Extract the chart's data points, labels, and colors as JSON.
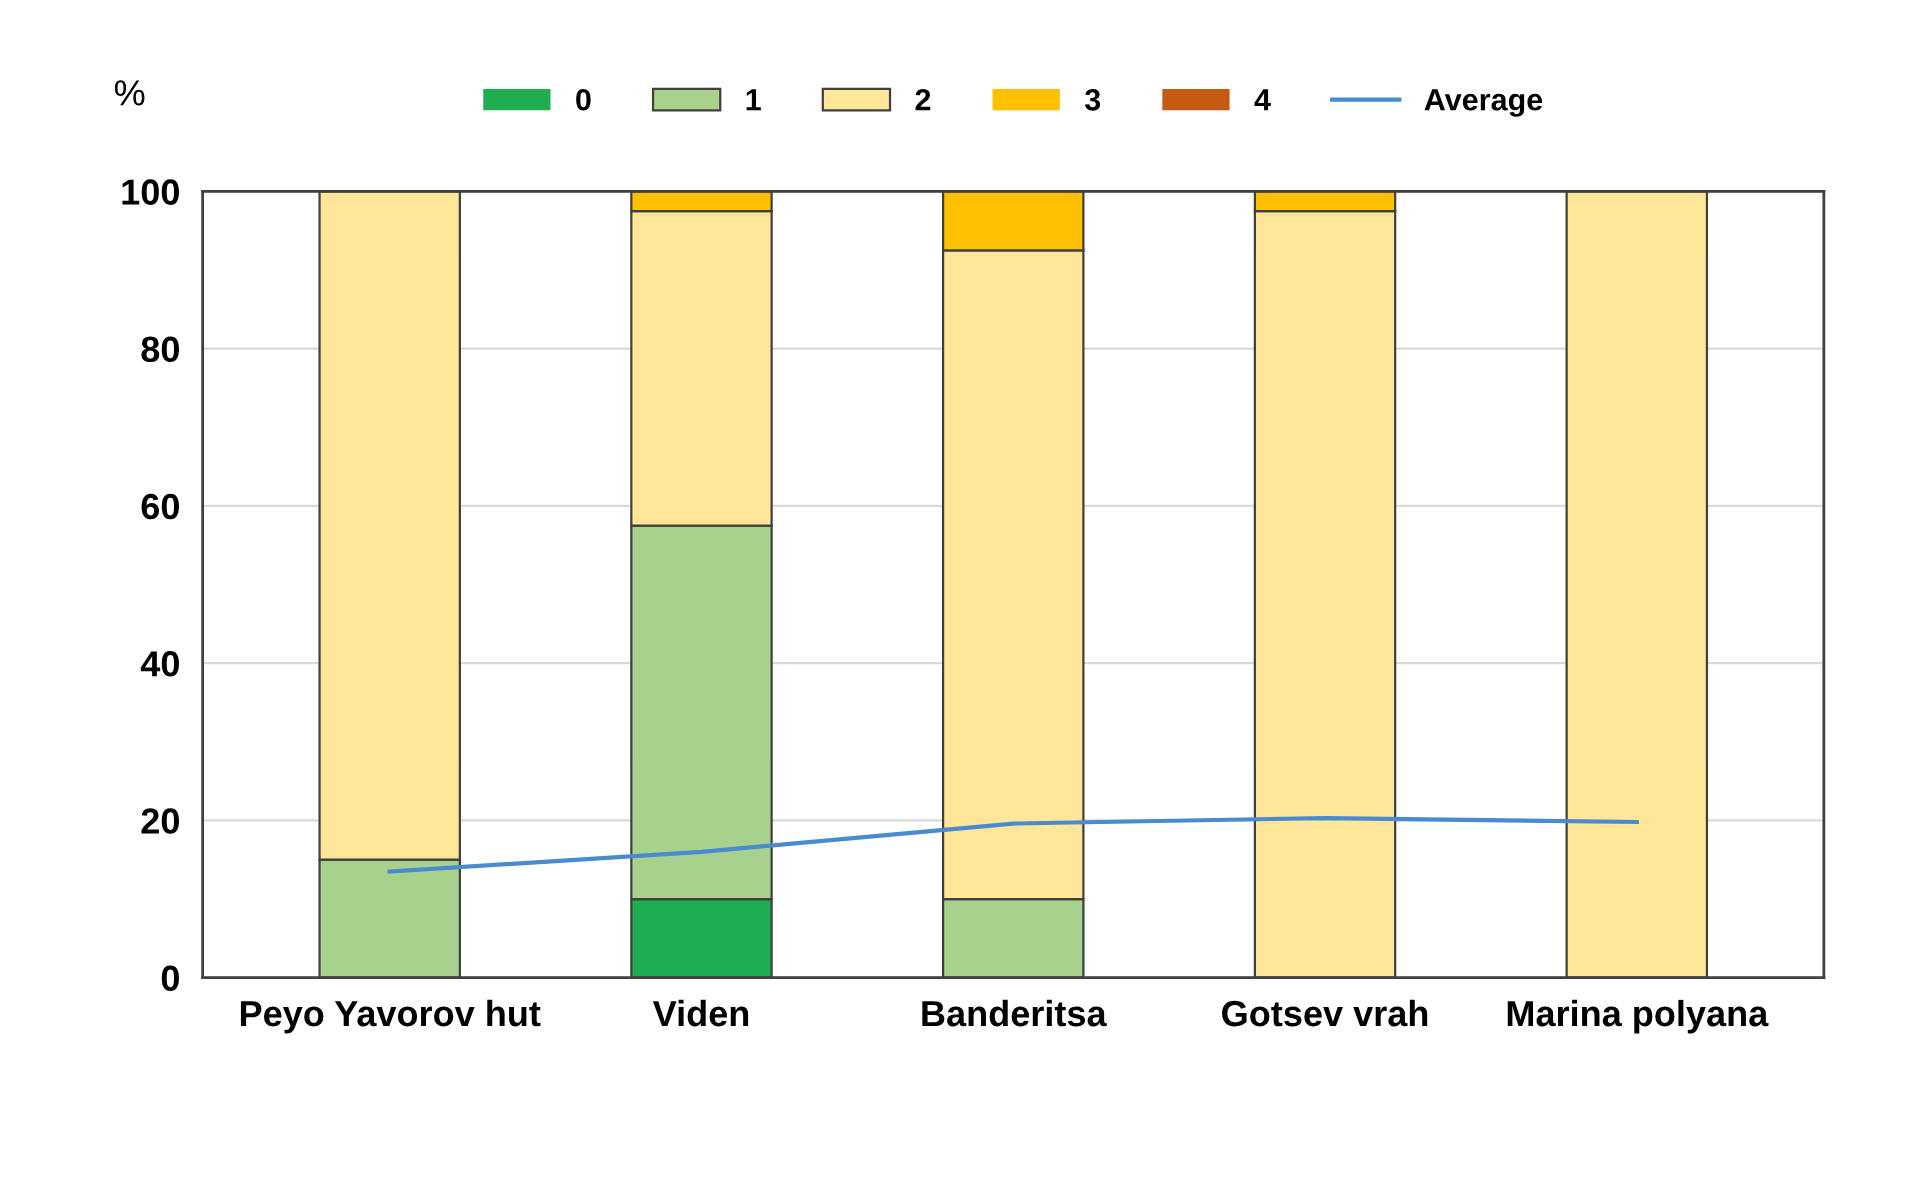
{
  "chart_data": {
    "type": "bar",
    "stacked": true,
    "ylabel": "%",
    "categories": [
      "Peyo Yavorov hut",
      "Viden",
      "Banderitsa",
      "Gotsev vrah",
      "Marina polyana"
    ],
    "series": [
      {
        "name": "0",
        "color": "#1fae4f",
        "values": [
          0,
          10,
          0,
          0,
          0
        ]
      },
      {
        "name": "1",
        "color": "#a9d18e",
        "values": [
          15,
          47.5,
          10,
          0,
          0
        ]
      },
      {
        "name": "2",
        "color": "#ffe699",
        "values": [
          85,
          40,
          82.5,
          97.5,
          100
        ]
      },
      {
        "name": "3",
        "color": "#ffc000",
        "values": [
          0,
          2.5,
          7.5,
          2.5,
          0
        ]
      },
      {
        "name": "4",
        "color": "#c55a11",
        "values": [
          0,
          0,
          0,
          0,
          0
        ]
      },
      {
        "name": "Average",
        "type": "line",
        "color": "#4a8ad0",
        "values": [
          13.5,
          16,
          19.6,
          20.3,
          19.8
        ]
      }
    ],
    "ylim": [
      0,
      100
    ],
    "yticks": [
      0,
      20,
      40,
      60,
      80,
      100
    ],
    "grid": "y",
    "legend": "top"
  }
}
